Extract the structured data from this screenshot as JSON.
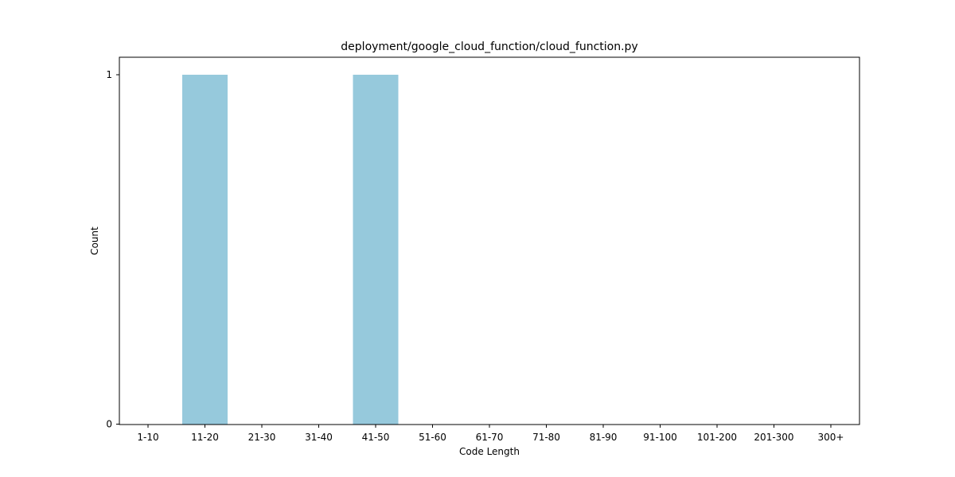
{
  "chart_data": {
    "type": "bar",
    "title": "deployment/google_cloud_function/cloud_function.py",
    "xlabel": "Code Length",
    "ylabel": "Count",
    "categories": [
      "1-10",
      "11-20",
      "21-30",
      "31-40",
      "41-50",
      "51-60",
      "61-70",
      "71-80",
      "81-90",
      "91-100",
      "101-200",
      "201-300",
      "300+"
    ],
    "values": [
      0,
      1,
      0,
      0,
      1,
      0,
      0,
      0,
      0,
      0,
      0,
      0,
      0
    ],
    "ylim": [
      0,
      1
    ],
    "yticks": [
      0,
      1
    ],
    "grid": false,
    "legend": "none",
    "bar_color": "#96c9dc"
  }
}
